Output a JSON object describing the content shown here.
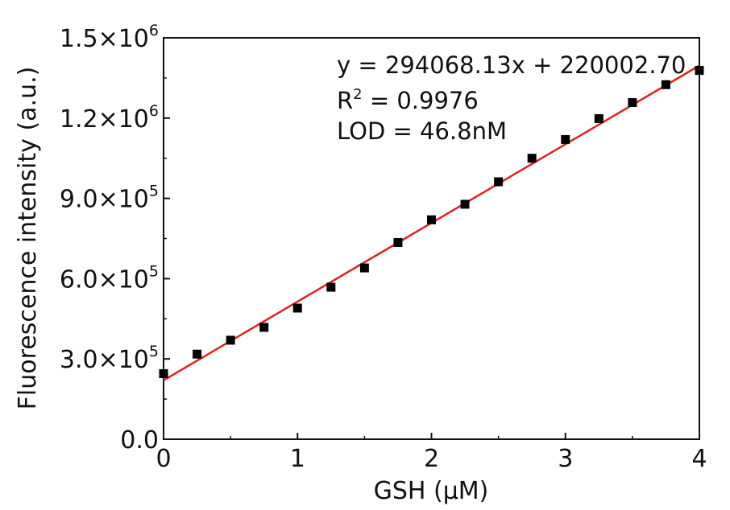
{
  "chart_data": {
    "type": "scatter",
    "xlabel": "GSH (μM)",
    "ylabel": "Fluorescence intensity (a.u.)",
    "xlim": [
      0,
      4
    ],
    "ylim": [
      0,
      1500000
    ],
    "x_ticks": [
      "0",
      "1",
      "2",
      "3",
      "4"
    ],
    "y_ticks": [
      {
        "mantissa": "0.0",
        "exp": ""
      },
      {
        "mantissa": "3.0×10",
        "exp": "5"
      },
      {
        "mantissa": "6.0×10",
        "exp": "5"
      },
      {
        "mantissa": "9.0×10",
        "exp": "5"
      },
      {
        "mantissa": "1.2×10",
        "exp": "6"
      },
      {
        "mantissa": "1.5×10",
        "exp": "6"
      }
    ],
    "grid": false,
    "series": [
      {
        "marker": "square",
        "color": "#000000",
        "x": [
          0,
          0.25,
          0.5,
          0.75,
          1.0,
          1.25,
          1.5,
          1.75,
          2.0,
          2.25,
          2.5,
          2.75,
          3.0,
          3.25,
          3.5,
          3.75,
          4.0
        ],
        "y": [
          245000,
          318000,
          370000,
          418000,
          490000,
          568000,
          640000,
          735000,
          820000,
          878000,
          962000,
          1050000,
          1120000,
          1198000,
          1258000,
          1325000,
          1378000
        ]
      }
    ],
    "fit": {
      "color": "#e02020",
      "slope": 294068.13,
      "intercept": 220002.7
    },
    "annotations": {
      "equation": "y = 294068.13x + 220002.70",
      "r2_prefix": "R",
      "r2_sup": "2",
      "r2_value": " = 0.9976",
      "lod": "LOD = 46.8nM"
    }
  }
}
